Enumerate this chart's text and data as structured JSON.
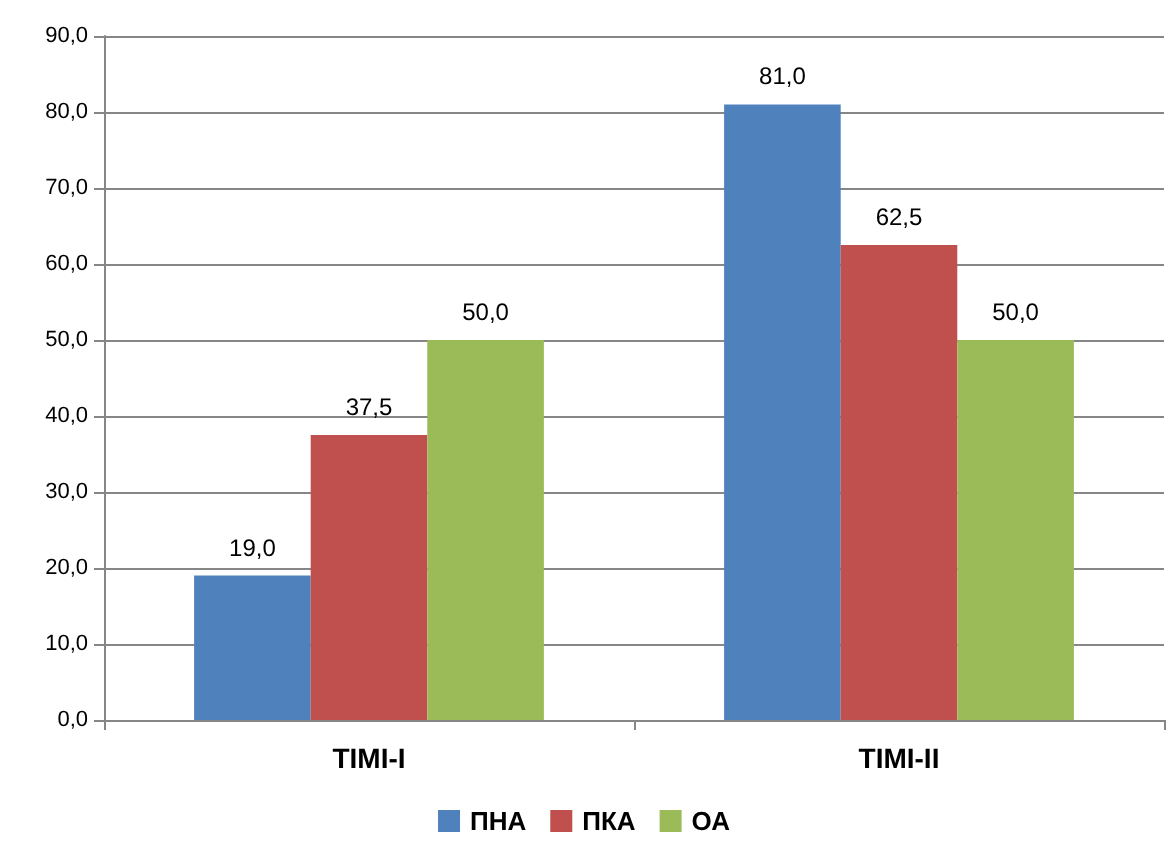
{
  "chart_data": {
    "type": "bar",
    "categories": [
      "TIMI-I",
      "TIMI-II"
    ],
    "series": [
      {
        "name": "ПНА",
        "color": "#4f81bd",
        "values": [
          19,
          81
        ],
        "value_labels": [
          "19,0",
          "81,0"
        ]
      },
      {
        "name": "ПКА",
        "color": "#c0504d",
        "values": [
          37.5,
          62.5
        ],
        "value_labels": [
          "37,5",
          "62,5"
        ]
      },
      {
        "name": "ОА",
        "color": "#9bbb59",
        "values": [
          50,
          50
        ],
        "value_labels": [
          "50,0",
          "50,0"
        ]
      }
    ],
    "ylim": [
      0,
      90
    ],
    "yticks": [
      {
        "value": 0,
        "label": "0,0"
      },
      {
        "value": 10,
        "label": "10,0"
      },
      {
        "value": 20,
        "label": "20,0"
      },
      {
        "value": 30,
        "label": "30,0"
      },
      {
        "value": 40,
        "label": "40,0"
      },
      {
        "value": 50,
        "label": "50,0"
      },
      {
        "value": 60,
        "label": "60,0"
      },
      {
        "value": 70,
        "label": "70,0"
      },
      {
        "value": 80,
        "label": "80,0"
      },
      {
        "value": 90,
        "label": "90,0"
      }
    ],
    "grid": "y",
    "legend": "bottom"
  }
}
